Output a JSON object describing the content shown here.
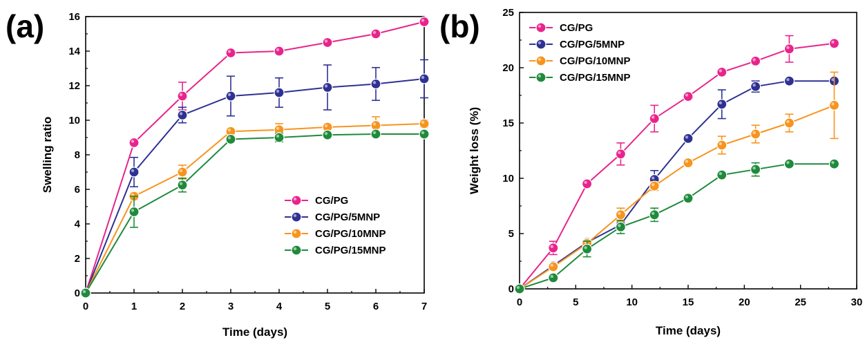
{
  "colors": {
    "CG/PG": "#e8248c",
    "CG/PG/5MNP": "#2e3192",
    "CG/PG/10MNP": "#f7941d",
    "CG/PG/15MNP": "#1f8a3b"
  },
  "chart_data": [
    {
      "panel": "(a)",
      "type": "line",
      "xlabel": "Time (days)",
      "ylabel": "Swelling ratio",
      "xlim": [
        0,
        7
      ],
      "ylim": [
        0,
        16
      ],
      "xticks": [
        0,
        1,
        2,
        3,
        4,
        5,
        6,
        7
      ],
      "yticks": [
        0,
        2,
        4,
        6,
        8,
        10,
        12,
        14,
        16
      ],
      "legend": "lower-right",
      "x": [
        0,
        1,
        2,
        3,
        4,
        5,
        6,
        7
      ],
      "series": [
        {
          "name": "CG/PG",
          "values": [
            0,
            8.7,
            11.4,
            13.9,
            14.0,
            14.5,
            15.0,
            15.7
          ],
          "errors": [
            0,
            0.15,
            0.8,
            0.1,
            0.1,
            0.1,
            0.1,
            0.1
          ]
        },
        {
          "name": "CG/PG/5MNP",
          "values": [
            0,
            7.0,
            10.3,
            11.4,
            11.6,
            11.9,
            12.1,
            12.4
          ],
          "errors": [
            0,
            0.85,
            0.45,
            1.15,
            0.85,
            1.3,
            0.95,
            1.1
          ]
        },
        {
          "name": "CG/PG/10MNP",
          "values": [
            0,
            5.6,
            7.0,
            9.35,
            9.45,
            9.6,
            9.7,
            9.8
          ],
          "errors": [
            0,
            0.2,
            0.4,
            0.15,
            0.35,
            0.15,
            0.5,
            0.2
          ]
        },
        {
          "name": "CG/PG/15MNP",
          "values": [
            0,
            4.7,
            6.25,
            8.9,
            9.0,
            9.15,
            9.2,
            9.2
          ],
          "errors": [
            0,
            0.9,
            0.4,
            0.1,
            0.25,
            0.1,
            0.1,
            0.1
          ]
        }
      ]
    },
    {
      "panel": "(b)",
      "type": "line",
      "xlabel": "Time (days)",
      "ylabel": "Weight loss (%)",
      "xlim": [
        0,
        30
      ],
      "ylim": [
        0,
        25
      ],
      "xticks": [
        0,
        5,
        10,
        15,
        20,
        25,
        30
      ],
      "yticks": [
        0,
        5,
        10,
        15,
        20,
        25
      ],
      "legend": "top-left",
      "x": [
        0,
        3,
        6,
        9,
        12,
        15,
        18,
        21,
        24,
        28
      ],
      "series": [
        {
          "name": "CG/PG",
          "values": [
            0,
            3.7,
            9.5,
            12.2,
            15.4,
            17.4,
            19.6,
            20.6,
            21.7,
            22.2
          ],
          "errors": [
            0,
            0.6,
            0.2,
            1.0,
            1.2,
            0.2,
            0.2,
            0.2,
            1.2,
            0.2
          ]
        },
        {
          "name": "CG/PG/5MNP",
          "values": [
            0,
            2.1,
            4.2,
            5.8,
            9.9,
            13.6,
            16.7,
            18.3,
            18.8,
            18.8
          ],
          "errors": [
            0,
            0.2,
            0.2,
            0.4,
            0.8,
            0.2,
            1.3,
            0.5,
            0.2,
            0.2
          ]
        },
        {
          "name": "CG/PG/10MNP",
          "values": [
            0,
            2.0,
            4.1,
            6.7,
            9.3,
            11.4,
            13.0,
            14.0,
            15.0,
            16.6
          ],
          "errors": [
            0,
            0.2,
            0.2,
            0.6,
            0.4,
            0.2,
            0.8,
            0.8,
            0.8,
            3.0
          ]
        },
        {
          "name": "CG/PG/15MNP",
          "values": [
            0,
            1.0,
            3.6,
            5.6,
            6.7,
            8.2,
            10.3,
            10.8,
            11.3,
            11.3
          ],
          "errors": [
            0,
            0.2,
            0.7,
            0.6,
            0.6,
            0.2,
            0.2,
            0.6,
            0.2,
            0.2
          ]
        }
      ]
    }
  ]
}
